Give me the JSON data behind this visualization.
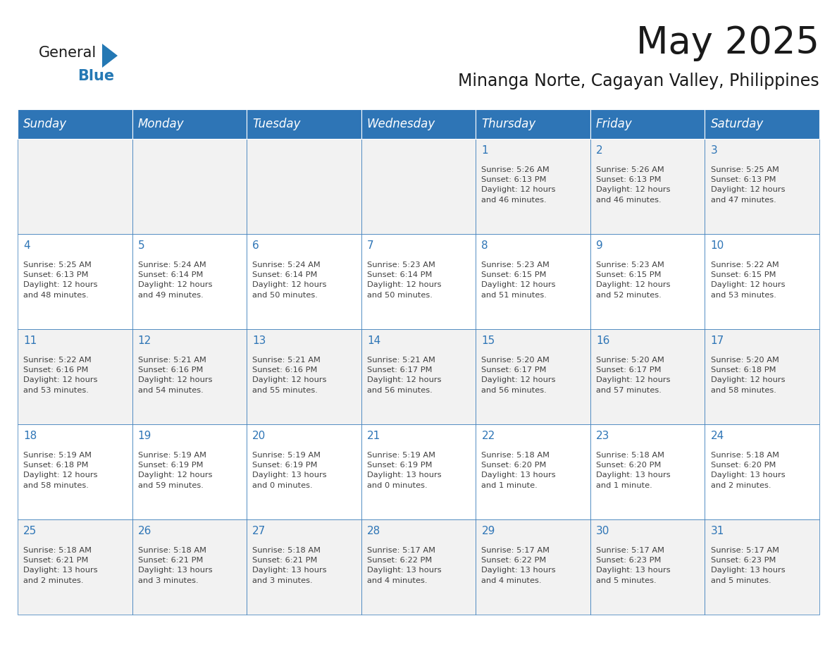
{
  "title": "May 2025",
  "subtitle": "Minanga Norte, Cagayan Valley, Philippines",
  "header_bg_color": "#2E75B6",
  "header_text_color": "#FFFFFF",
  "cell_bg_row0": "#F2F2F2",
  "cell_bg_row1": "#FFFFFF",
  "cell_bg_row2": "#F2F2F2",
  "cell_bg_row3": "#FFFFFF",
  "cell_bg_row4": "#F2F2F2",
  "cell_border_color": "#2E75B6",
  "day_number_color": "#2E75B6",
  "cell_text_color": "#404040",
  "days_of_week": [
    "Sunday",
    "Monday",
    "Tuesday",
    "Wednesday",
    "Thursday",
    "Friday",
    "Saturday"
  ],
  "weeks": [
    [
      {
        "day": "",
        "info": ""
      },
      {
        "day": "",
        "info": ""
      },
      {
        "day": "",
        "info": ""
      },
      {
        "day": "",
        "info": ""
      },
      {
        "day": "1",
        "info": "Sunrise: 5:26 AM\nSunset: 6:13 PM\nDaylight: 12 hours\nand 46 minutes."
      },
      {
        "day": "2",
        "info": "Sunrise: 5:26 AM\nSunset: 6:13 PM\nDaylight: 12 hours\nand 46 minutes."
      },
      {
        "day": "3",
        "info": "Sunrise: 5:25 AM\nSunset: 6:13 PM\nDaylight: 12 hours\nand 47 minutes."
      }
    ],
    [
      {
        "day": "4",
        "info": "Sunrise: 5:25 AM\nSunset: 6:13 PM\nDaylight: 12 hours\nand 48 minutes."
      },
      {
        "day": "5",
        "info": "Sunrise: 5:24 AM\nSunset: 6:14 PM\nDaylight: 12 hours\nand 49 minutes."
      },
      {
        "day": "6",
        "info": "Sunrise: 5:24 AM\nSunset: 6:14 PM\nDaylight: 12 hours\nand 50 minutes."
      },
      {
        "day": "7",
        "info": "Sunrise: 5:23 AM\nSunset: 6:14 PM\nDaylight: 12 hours\nand 50 minutes."
      },
      {
        "day": "8",
        "info": "Sunrise: 5:23 AM\nSunset: 6:15 PM\nDaylight: 12 hours\nand 51 minutes."
      },
      {
        "day": "9",
        "info": "Sunrise: 5:23 AM\nSunset: 6:15 PM\nDaylight: 12 hours\nand 52 minutes."
      },
      {
        "day": "10",
        "info": "Sunrise: 5:22 AM\nSunset: 6:15 PM\nDaylight: 12 hours\nand 53 minutes."
      }
    ],
    [
      {
        "day": "11",
        "info": "Sunrise: 5:22 AM\nSunset: 6:16 PM\nDaylight: 12 hours\nand 53 minutes."
      },
      {
        "day": "12",
        "info": "Sunrise: 5:21 AM\nSunset: 6:16 PM\nDaylight: 12 hours\nand 54 minutes."
      },
      {
        "day": "13",
        "info": "Sunrise: 5:21 AM\nSunset: 6:16 PM\nDaylight: 12 hours\nand 55 minutes."
      },
      {
        "day": "14",
        "info": "Sunrise: 5:21 AM\nSunset: 6:17 PM\nDaylight: 12 hours\nand 56 minutes."
      },
      {
        "day": "15",
        "info": "Sunrise: 5:20 AM\nSunset: 6:17 PM\nDaylight: 12 hours\nand 56 minutes."
      },
      {
        "day": "16",
        "info": "Sunrise: 5:20 AM\nSunset: 6:17 PM\nDaylight: 12 hours\nand 57 minutes."
      },
      {
        "day": "17",
        "info": "Sunrise: 5:20 AM\nSunset: 6:18 PM\nDaylight: 12 hours\nand 58 minutes."
      }
    ],
    [
      {
        "day": "18",
        "info": "Sunrise: 5:19 AM\nSunset: 6:18 PM\nDaylight: 12 hours\nand 58 minutes."
      },
      {
        "day": "19",
        "info": "Sunrise: 5:19 AM\nSunset: 6:19 PM\nDaylight: 12 hours\nand 59 minutes."
      },
      {
        "day": "20",
        "info": "Sunrise: 5:19 AM\nSunset: 6:19 PM\nDaylight: 13 hours\nand 0 minutes."
      },
      {
        "day": "21",
        "info": "Sunrise: 5:19 AM\nSunset: 6:19 PM\nDaylight: 13 hours\nand 0 minutes."
      },
      {
        "day": "22",
        "info": "Sunrise: 5:18 AM\nSunset: 6:20 PM\nDaylight: 13 hours\nand 1 minute."
      },
      {
        "day": "23",
        "info": "Sunrise: 5:18 AM\nSunset: 6:20 PM\nDaylight: 13 hours\nand 1 minute."
      },
      {
        "day": "24",
        "info": "Sunrise: 5:18 AM\nSunset: 6:20 PM\nDaylight: 13 hours\nand 2 minutes."
      }
    ],
    [
      {
        "day": "25",
        "info": "Sunrise: 5:18 AM\nSunset: 6:21 PM\nDaylight: 13 hours\nand 2 minutes."
      },
      {
        "day": "26",
        "info": "Sunrise: 5:18 AM\nSunset: 6:21 PM\nDaylight: 13 hours\nand 3 minutes."
      },
      {
        "day": "27",
        "info": "Sunrise: 5:18 AM\nSunset: 6:21 PM\nDaylight: 13 hours\nand 3 minutes."
      },
      {
        "day": "28",
        "info": "Sunrise: 5:17 AM\nSunset: 6:22 PM\nDaylight: 13 hours\nand 4 minutes."
      },
      {
        "day": "29",
        "info": "Sunrise: 5:17 AM\nSunset: 6:22 PM\nDaylight: 13 hours\nand 4 minutes."
      },
      {
        "day": "30",
        "info": "Sunrise: 5:17 AM\nSunset: 6:23 PM\nDaylight: 13 hours\nand 5 minutes."
      },
      {
        "day": "31",
        "info": "Sunrise: 5:17 AM\nSunset: 6:23 PM\nDaylight: 13 hours\nand 5 minutes."
      }
    ]
  ],
  "logo_general_color": "#1A1A1A",
  "logo_blue_color": "#2478B4",
  "title_fontsize": 38,
  "subtitle_fontsize": 17,
  "header_fontsize": 12,
  "day_num_fontsize": 11,
  "cell_text_fontsize": 8.2,
  "fig_width": 11.88,
  "fig_height": 9.18,
  "fig_dpi": 100
}
